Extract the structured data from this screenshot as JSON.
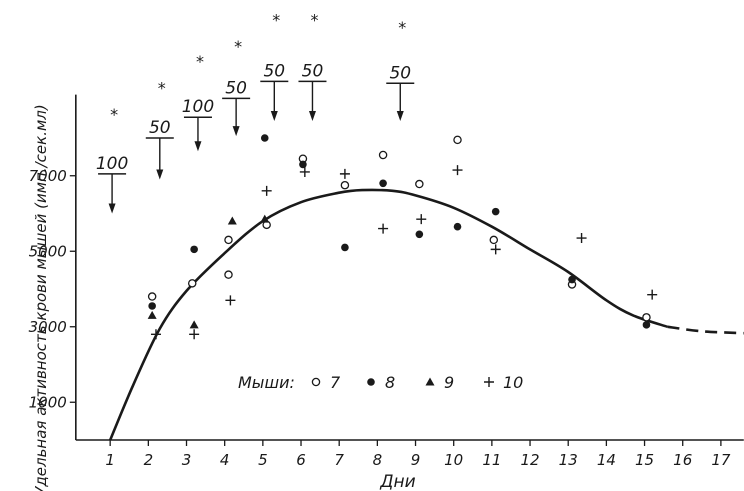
{
  "chart_data": {
    "type": "scatter",
    "xlabel": "Дни",
    "ylabel": "Удельная активность крови мышей (имп./сек.мл)",
    "x_ticks": [
      1,
      2,
      3,
      4,
      5,
      6,
      7,
      8,
      9,
      10,
      11,
      12,
      13,
      14,
      15,
      16,
      17
    ],
    "y_ticks": [
      1000,
      3000,
      5000,
      7000
    ],
    "xlim": [
      0.1,
      17.6
    ],
    "ylim": [
      0,
      9150
    ],
    "legend": {
      "title": "Мыши:",
      "placement": "bottom-center",
      "labels": [
        "7",
        "8",
        "9",
        "10"
      ]
    },
    "series": [
      {
        "name": "7",
        "marker": "open-circle",
        "points": [
          [
            2.1,
            3800
          ],
          [
            3.15,
            4150
          ],
          [
            4.1,
            4380
          ],
          [
            4.1,
            5300
          ],
          [
            5.1,
            5700
          ],
          [
            6.05,
            7450
          ],
          [
            7.15,
            6750
          ],
          [
            8.15,
            7550
          ],
          [
            9.1,
            6780
          ],
          [
            10.1,
            7950
          ],
          [
            11.05,
            5300
          ],
          [
            13.1,
            4120
          ],
          [
            15.05,
            3250
          ]
        ]
      },
      {
        "name": "8",
        "marker": "filled-circle",
        "points": [
          [
            2.1,
            3550
          ],
          [
            3.2,
            5050
          ],
          [
            5.05,
            8000
          ],
          [
            6.05,
            7300
          ],
          [
            7.15,
            5100
          ],
          [
            8.15,
            6800
          ],
          [
            9.1,
            5450
          ],
          [
            10.1,
            5650
          ],
          [
            11.1,
            6050
          ],
          [
            13.1,
            4250
          ],
          [
            15.05,
            3050
          ]
        ]
      },
      {
        "name": "9",
        "marker": "filled-triangle",
        "points": [
          [
            2.1,
            3300
          ],
          [
            3.2,
            3050
          ],
          [
            4.2,
            5800
          ],
          [
            5.05,
            5850
          ]
        ]
      },
      {
        "name": "10",
        "marker": "plus",
        "points": [
          [
            2.2,
            2800
          ],
          [
            3.2,
            2800
          ],
          [
            4.15,
            3700
          ],
          [
            5.1,
            6600
          ],
          [
            6.1,
            7100
          ],
          [
            7.15,
            7050
          ],
          [
            8.15,
            5600
          ],
          [
            9.15,
            5850
          ],
          [
            10.1,
            7150
          ],
          [
            11.1,
            5050
          ],
          [
            13.35,
            5350
          ],
          [
            15.2,
            3850
          ]
        ]
      }
    ],
    "trend": {
      "style": "solid-then-dashed",
      "points": [
        [
          1,
          0
        ],
        [
          1.6,
          1450
        ],
        [
          2.3,
          2950
        ],
        [
          3,
          3950
        ],
        [
          4,
          4950
        ],
        [
          5,
          5800
        ],
        [
          6,
          6300
        ],
        [
          7,
          6550
        ],
        [
          7.6,
          6620
        ],
        [
          8.4,
          6600
        ],
        [
          9,
          6480
        ],
        [
          10,
          6150
        ],
        [
          11,
          5650
        ],
        [
          12,
          5050
        ],
        [
          13,
          4450
        ],
        [
          14,
          3700
        ],
        [
          14.7,
          3300
        ],
        [
          15.6,
          3000
        ],
        [
          16.5,
          2880
        ],
        [
          17.6,
          2830
        ]
      ],
      "dash_from_x": 15.7
    },
    "annotations": [
      {
        "x": 1.05,
        "label": "100",
        "star": "*",
        "top": 8800,
        "bar": 7050,
        "arrow_end": 6000
      },
      {
        "x": 2.3,
        "label": "50",
        "star": "*",
        "top": 9500,
        "bar": 8000,
        "arrow_end": 6900
      },
      {
        "x": 3.3,
        "label": "100",
        "star": "*",
        "top": 10200,
        "bar": 8550,
        "arrow_end": 7650
      },
      {
        "x": 4.3,
        "label": "50",
        "star": "*",
        "top": 10600,
        "bar": 9050,
        "arrow_end": 8050
      },
      {
        "x": 5.3,
        "label": "50",
        "star": "*",
        "top": 11300,
        "bar": 9500,
        "arrow_end": 8450
      },
      {
        "x": 6.3,
        "label": "50",
        "star": "*",
        "top": 11300,
        "bar": 9500,
        "arrow_end": 8450
      },
      {
        "x": 8.6,
        "label": "50",
        "star": "*",
        "top": 11100,
        "bar": 9450,
        "arrow_end": 8450
      }
    ]
  }
}
